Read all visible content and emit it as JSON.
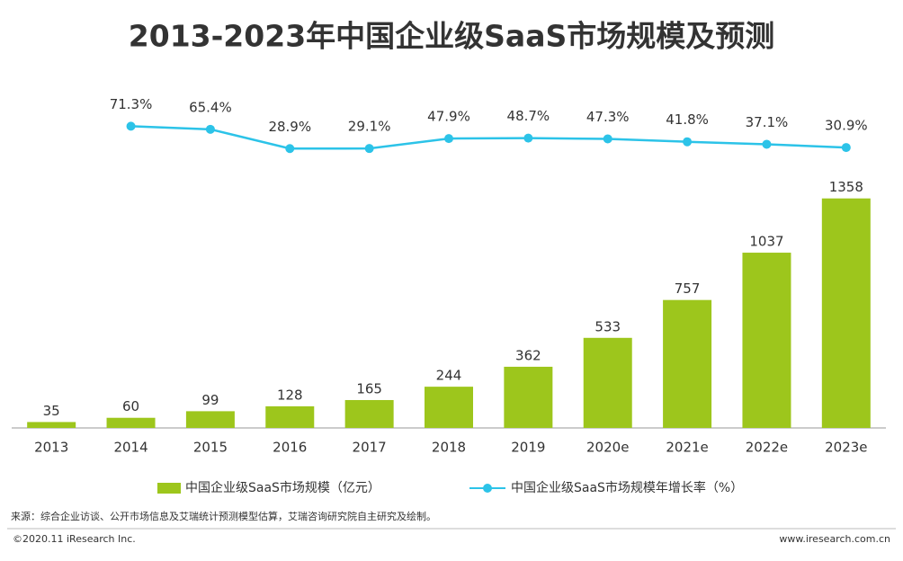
{
  "chart_data": {
    "type": "bar",
    "title": "2013-2023年中国企业级SaaS市场规模及预测",
    "categories": [
      "2013",
      "2014",
      "2015",
      "2016",
      "2017",
      "2018",
      "2019",
      "2020e",
      "2021e",
      "2022e",
      "2023e"
    ],
    "series": [
      {
        "name": "中国企业级SaaS市场规模（亿元）",
        "type": "bar",
        "color": "#9dc61c",
        "values": [
          35,
          60,
          99,
          128,
          165,
          244,
          362,
          533,
          757,
          1037,
          1358
        ]
      },
      {
        "name": "中国企业级SaaS市场规模年增长率（%）",
        "type": "line",
        "axis": "y2",
        "color": "#2cc3e8",
        "values": [
          null,
          71.3,
          65.4,
          28.9,
          29.1,
          47.9,
          48.7,
          47.3,
          41.8,
          37.1,
          30.9
        ],
        "value_labels": [
          null,
          "71.3%",
          "65.4%",
          "28.9%",
          "29.1%",
          "47.9%",
          "48.7%",
          "47.3%",
          "41.8%",
          "37.1%",
          "30.9%"
        ]
      }
    ],
    "ylim": [
      0,
      2000
    ],
    "y2lim": [
      -500,
      140
    ],
    "source": "来源：综合企业访谈、公开市场信息及艾瑞统计预测模型估算，艾瑞咨询研究院自主研究及绘制。",
    "copyright": "©2020.11 iResearch Inc.",
    "website": "www.iresearch.com.cn"
  }
}
